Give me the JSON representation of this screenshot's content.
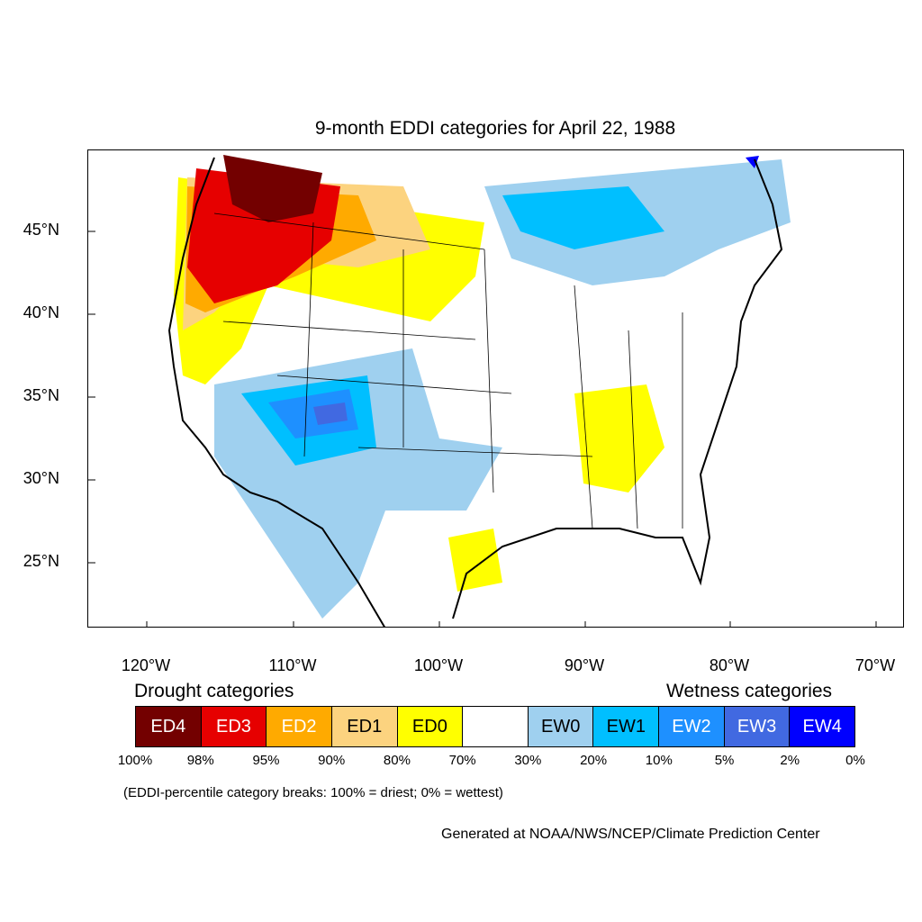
{
  "title": "9-month EDDI categories for April 22, 1988",
  "map": {
    "lat_labels": [
      "45°N",
      "40°N",
      "35°N",
      "30°N",
      "25°N"
    ],
    "lon_labels": [
      "120°W",
      "110°W",
      "100°W",
      "90°W",
      "80°W",
      "70°W"
    ]
  },
  "legend": {
    "drought_heading": "Drought categories",
    "wetness_heading": "Wetness categories",
    "categories": [
      {
        "label": "ED4",
        "color": "#730000",
        "text_color": "#ffffff"
      },
      {
        "label": "ED3",
        "color": "#e60000",
        "text_color": "#ffffff"
      },
      {
        "label": "ED2",
        "color": "#ffaa00",
        "text_color": "#ffffff"
      },
      {
        "label": "ED1",
        "color": "#fcd37f",
        "text_color": "#000000"
      },
      {
        "label": "ED0",
        "color": "#ffff00",
        "text_color": "#000000"
      },
      {
        "label": "",
        "color": "#ffffff",
        "text_color": "#000000"
      },
      {
        "label": "EW0",
        "color": "#9fd0ef",
        "text_color": "#000000"
      },
      {
        "label": "EW1",
        "color": "#00bfff",
        "text_color": "#000000"
      },
      {
        "label": "EW2",
        "color": "#1e90ff",
        "text_color": "#ffffff"
      },
      {
        "label": "EW3",
        "color": "#4169e1",
        "text_color": "#ffffff"
      },
      {
        "label": "EW4",
        "color": "#0000ff",
        "text_color": "#ffffff"
      }
    ],
    "percent_breaks": [
      "100%",
      "98%",
      "95%",
      "90%",
      "80%",
      "70%",
      "30%",
      "20%",
      "10%",
      "5%",
      "2%",
      "0%"
    ]
  },
  "note": "(EDDI-percentile category breaks: 100% = driest; 0% = wettest)",
  "credit": "Generated at NOAA/NWS/NCEP/Climate Prediction Center"
}
